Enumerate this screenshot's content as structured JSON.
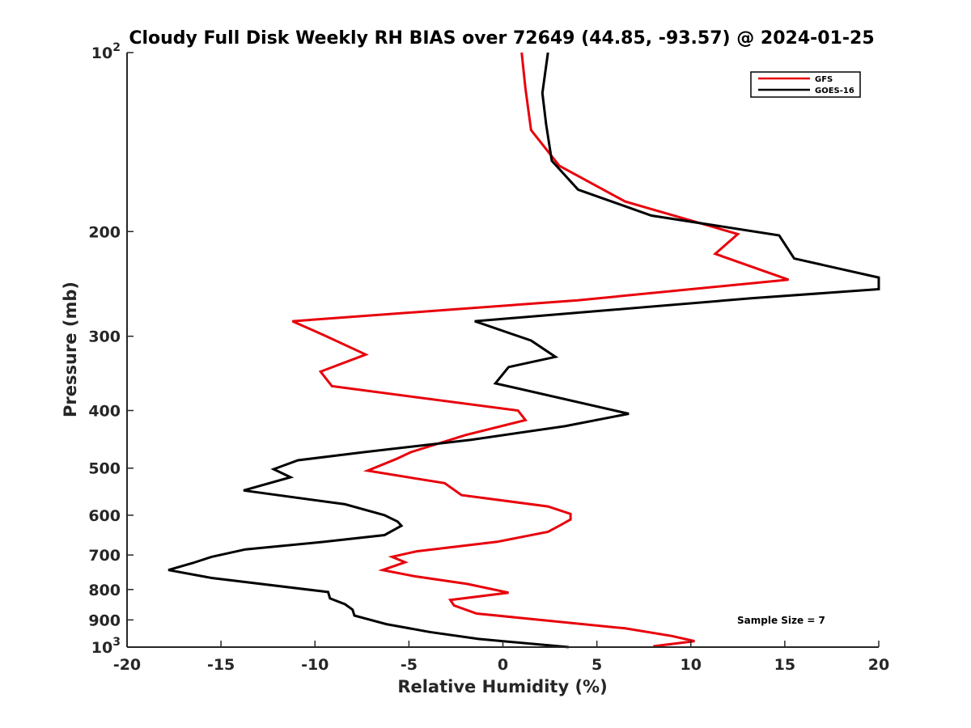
{
  "chart_data": {
    "type": "line",
    "title": "Cloudy Full Disk Weekly RH BIAS over 72649 (44.85, -93.57) @ 2024-01-25",
    "xlabel": "Relative Humidity (%)",
    "ylabel": "Pressure (mb)",
    "xlim": [
      -20,
      20
    ],
    "ylim": [
      1000,
      100
    ],
    "yscale": "log",
    "y_reversed": true,
    "x_ticks": [
      -20,
      -15,
      -10,
      -5,
      0,
      5,
      10,
      15,
      20
    ],
    "y_ticks": [
      {
        "value": 100,
        "base": "10",
        "exp": "2"
      },
      {
        "value": 200,
        "label": "200"
      },
      {
        "value": 300,
        "label": "300"
      },
      {
        "value": 400,
        "label": "400"
      },
      {
        "value": 500,
        "label": "500"
      },
      {
        "value": 600,
        "label": "600"
      },
      {
        "value": 700,
        "label": "700"
      },
      {
        "value": 800,
        "label": "800"
      },
      {
        "value": 900,
        "label": "900"
      },
      {
        "value": 1000,
        "base": "10",
        "exp": "3"
      }
    ],
    "grid": false,
    "legend_position": "top-right",
    "annotation": "Sample Size = 7",
    "series": [
      {
        "name": "GFS",
        "color": "#e8000b",
        "points": [
          [
            1.0,
            100
          ],
          [
            1.2,
            115
          ],
          [
            1.5,
            135
          ],
          [
            3.0,
            155
          ],
          [
            6.5,
            178
          ],
          [
            12.5,
            202
          ],
          [
            11.3,
            218
          ],
          [
            15.2,
            241
          ],
          [
            4.0,
            261
          ],
          [
            -11.2,
            283
          ],
          [
            -9.5,
            299
          ],
          [
            -7.3,
            322
          ],
          [
            -9.7,
            344
          ],
          [
            -9.1,
            364
          ],
          [
            0.8,
            400
          ],
          [
            1.2,
            415
          ],
          [
            -2.0,
            440
          ],
          [
            -4.9,
            470
          ],
          [
            -5.7,
            483
          ],
          [
            -7.2,
            505
          ],
          [
            -3.1,
            530
          ],
          [
            -2.2,
            555
          ],
          [
            2.4,
            580
          ],
          [
            3.6,
            597
          ],
          [
            3.6,
            610
          ],
          [
            3.0,
            625
          ],
          [
            2.4,
            640
          ],
          [
            -0.3,
            665
          ],
          [
            -4.6,
            690
          ],
          [
            -5.9,
            705
          ],
          [
            -5.2,
            720
          ],
          [
            -6.4,
            742
          ],
          [
            -4.7,
            760
          ],
          [
            -1.9,
            783
          ],
          [
            0.3,
            810
          ],
          [
            -2.8,
            833
          ],
          [
            -2.6,
            851
          ],
          [
            -1.4,
            878
          ],
          [
            6.5,
            930
          ],
          [
            9.0,
            958
          ],
          [
            10.2,
            977
          ],
          [
            8.0,
            997
          ]
        ]
      },
      {
        "name": "GOES-16",
        "color": "#000000",
        "points": [
          [
            2.4,
            100
          ],
          [
            2.1,
            117
          ],
          [
            2.3,
            132
          ],
          [
            2.6,
            152
          ],
          [
            4.0,
            170
          ],
          [
            7.9,
            188
          ],
          [
            14.7,
            203
          ],
          [
            15.5,
            222
          ],
          [
            20.0,
            239
          ],
          [
            20.0,
            250
          ],
          [
            13.2,
            259
          ],
          [
            -1.5,
            283
          ],
          [
            1.5,
            305
          ],
          [
            2.8,
            325
          ],
          [
            0.3,
            338
          ],
          [
            -0.4,
            360
          ],
          [
            6.7,
            405
          ],
          [
            3.3,
            425
          ],
          [
            -1.7,
            448
          ],
          [
            -7.4,
            470
          ],
          [
            -10.9,
            485
          ],
          [
            -12.2,
            502
          ],
          [
            -11.3,
            518
          ],
          [
            -13.8,
            545
          ],
          [
            -8.4,
            575
          ],
          [
            -6.3,
            600
          ],
          [
            -5.6,
            615
          ],
          [
            -5.4,
            625
          ],
          [
            -6.3,
            648
          ],
          [
            -9.5,
            665
          ],
          [
            -13.7,
            685
          ],
          [
            -15.5,
            705
          ],
          [
            -16.5,
            722
          ],
          [
            -17.8,
            742
          ],
          [
            -15.5,
            765
          ],
          [
            -9.3,
            808
          ],
          [
            -9.2,
            828
          ],
          [
            -8.4,
            847
          ],
          [
            -8.0,
            865
          ],
          [
            -7.9,
            885
          ],
          [
            -6.2,
            915
          ],
          [
            -3.9,
            943
          ],
          [
            -1.3,
            969
          ],
          [
            3.5,
            1000
          ]
        ]
      }
    ]
  }
}
